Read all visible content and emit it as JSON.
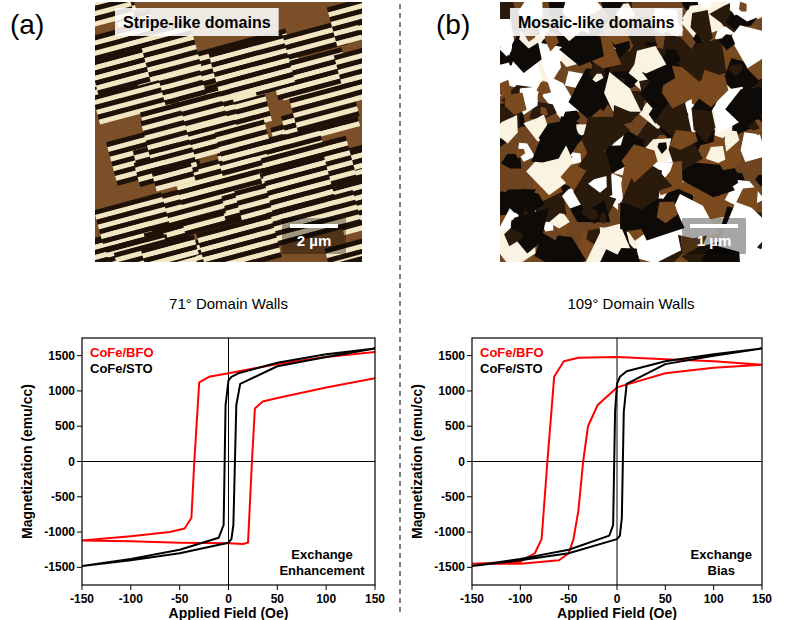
{
  "panels": [
    {
      "label": "(a)",
      "image_title": "Stripe-like domains",
      "scale_bar": "2 µm",
      "caption": "71° Domain Walls"
    },
    {
      "label": "(b)",
      "image_title": "Mosaic-like domains",
      "scale_bar": "1 µm",
      "caption": "109° Domain Walls"
    }
  ],
  "chart_data": [
    {
      "type": "line",
      "x_label": "Applied Field (Oe)",
      "y_label": "Magnetization (emu/cc)",
      "xlim": [
        -150,
        150
      ],
      "ylim": [
        -1750,
        1750
      ],
      "xticks": [
        -150,
        -100,
        -50,
        0,
        50,
        100,
        150
      ],
      "yticks": [
        -1500,
        -1000,
        -500,
        0,
        500,
        1000,
        1500
      ],
      "legend": "upper left",
      "annotation": "Exchange Enhancement",
      "series": [
        {
          "name": "CoFe/BFO",
          "color": "#ff0000",
          "x": [
            150,
            100,
            50,
            0,
            -20,
            -30,
            -35,
            -38,
            -45,
            -60,
            -100,
            -150,
            -150,
            -100,
            -50,
            0,
            15,
            20,
            24,
            27,
            35,
            50,
            100,
            150
          ],
          "values": [
            1550,
            1480,
            1380,
            1250,
            1200,
            1120,
            0,
            -800,
            -950,
            -1000,
            -1060,
            -1120,
            -1120,
            -1130,
            -1150,
            -1160,
            -1170,
            -1150,
            0,
            750,
            850,
            900,
            1050,
            1180
          ]
        },
        {
          "name": "CoFe/STO",
          "color": "#000000",
          "x": [
            150,
            100,
            50,
            10,
            3,
            0,
            -3,
            -5,
            -10,
            -50,
            -100,
            -150,
            -150,
            -100,
            -50,
            0,
            3,
            5,
            8,
            12,
            50,
            100,
            150
          ],
          "values": [
            1600,
            1520,
            1400,
            1250,
            1200,
            1150,
            800,
            -900,
            -1080,
            -1250,
            -1380,
            -1480,
            -1480,
            -1400,
            -1300,
            -1150,
            -1100,
            -900,
            800,
            1100,
            1350,
            1480,
            1600
          ]
        }
      ]
    },
    {
      "type": "line",
      "x_label": "Applied Field (Oe)",
      "y_label": "Magnetization (emu/cc)",
      "xlim": [
        -150,
        150
      ],
      "ylim": [
        -1750,
        1750
      ],
      "xticks": [
        -150,
        -100,
        -50,
        0,
        50,
        100,
        150
      ],
      "yticks": [
        -1500,
        -1000,
        -500,
        0,
        500,
        1000,
        1500
      ],
      "legend": "upper left",
      "annotation": "Exchange Bias",
      "series": [
        {
          "name": "CoFe/BFO",
          "color": "#ff0000",
          "x": [
            150,
            100,
            50,
            0,
            -40,
            -55,
            -65,
            -72,
            -78,
            -85,
            -100,
            -150,
            -150,
            -100,
            -60,
            -50,
            -45,
            -40,
            -35,
            -30,
            -20,
            0,
            50,
            100,
            150
          ],
          "values": [
            1370,
            1420,
            1450,
            1480,
            1470,
            1420,
            1200,
            0,
            -1100,
            -1300,
            -1420,
            -1450,
            -1450,
            -1450,
            -1400,
            -1300,
            -1100,
            -700,
            0,
            500,
            800,
            1050,
            1250,
            1330,
            1370
          ]
        },
        {
          "name": "CoFe/STO",
          "color": "#000000",
          "x": [
            150,
            100,
            50,
            10,
            3,
            0,
            -2,
            -4,
            -8,
            -50,
            -100,
            -150,
            -150,
            -100,
            -50,
            0,
            3,
            5,
            7,
            10,
            50,
            100,
            150
          ],
          "values": [
            1600,
            1520,
            1420,
            1280,
            1200,
            1100,
            700,
            -900,
            -1050,
            -1250,
            -1380,
            -1480,
            -1480,
            -1400,
            -1300,
            -1100,
            -1050,
            -800,
            700,
            1100,
            1380,
            1500,
            1600
          ]
        }
      ]
    }
  ]
}
